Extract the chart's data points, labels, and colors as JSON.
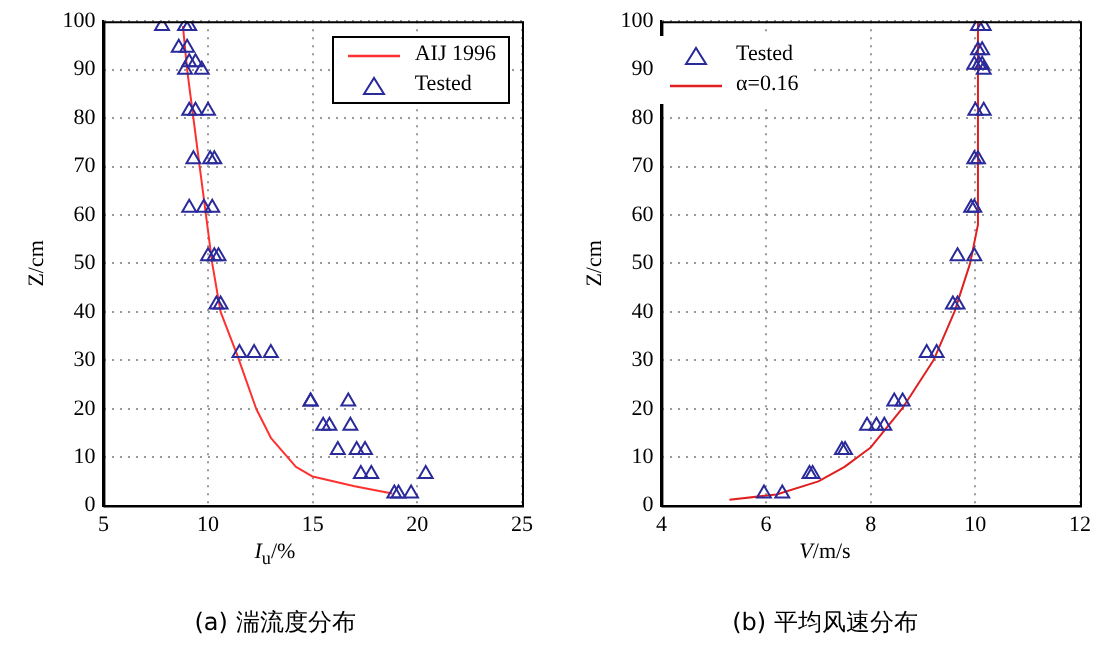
{
  "chart_data": [
    {
      "type": "scatter",
      "xlabel": "I$_{u}$/%",
      "ylabel": "Z/cm",
      "xlim": [
        5,
        25
      ],
      "xticks": [
        5,
        10,
        15,
        20,
        25
      ],
      "ylim": [
        0,
        100
      ],
      "yticks": [
        0,
        10,
        20,
        30,
        40,
        50,
        60,
        70,
        80,
        90,
        100
      ],
      "grid": true,
      "legend": "top right",
      "annotations": [
        "(a)  湍流度分布"
      ],
      "series": [
        {
          "name": "AIJ 1996",
          "type": "line",
          "marker": "none",
          "color": "#ff3030",
          "x": [
            8.8,
            9.0,
            9.3,
            9.6,
            9.9,
            10.2,
            10.6,
            11.4,
            12.3,
            13.0,
            14.2,
            15.0,
            17.0,
            18.8
          ],
          "values": [
            99,
            90,
            80,
            70,
            60,
            50,
            40,
            31,
            20,
            14,
            8,
            6,
            4,
            2.5
          ]
        },
        {
          "name": "Tested",
          "type": "scatter",
          "marker": "triangle",
          "color": "#2a2a9a",
          "x": [
            7.8,
            8.9,
            9.1,
            8.6,
            9.0,
            9.1,
            9.4,
            9.7,
            8.9,
            9.1,
            9.4,
            10.0,
            9.3,
            10.1,
            10.3,
            9.1,
            9.8,
            10.2,
            10.0,
            10.3,
            10.5,
            10.4,
            10.6,
            11.5,
            12.2,
            13.0,
            14.9,
            14.9,
            16.7,
            15.5,
            15.8,
            16.8,
            16.2,
            17.1,
            17.5,
            17.3,
            17.8,
            20.4,
            18.9,
            19.1,
            19.7
          ],
          "values": [
            99,
            99,
            99,
            94.5,
            94.5,
            91.5,
            91.5,
            90,
            90,
            81.5,
            81.5,
            81.5,
            71.5,
            71.5,
            71.5,
            61.5,
            61.5,
            61.5,
            51.5,
            51.5,
            51.5,
            41.5,
            41.5,
            31.5,
            31.5,
            31.5,
            21.5,
            21.5,
            21.5,
            16.5,
            16.5,
            16.5,
            11.5,
            11.5,
            11.5,
            6.5,
            6.5,
            6.5,
            2.5,
            2.5,
            2.5
          ]
        }
      ]
    },
    {
      "type": "scatter",
      "xlabel": "V/m/s",
      "ylabel": "Z/cm",
      "xlim": [
        4,
        12
      ],
      "xticks": [
        4,
        6,
        8,
        10,
        12
      ],
      "ylim": [
        0,
        100
      ],
      "yticks": [
        0,
        10,
        20,
        30,
        40,
        50,
        60,
        70,
        80,
        90,
        100
      ],
      "grid": true,
      "legend": "top left",
      "annotations": [
        "(b)  平均风速分布"
      ],
      "series": [
        {
          "name": "Tested",
          "type": "scatter",
          "marker": "triangle",
          "color": "#2a2a9a",
          "x": [
            10.05,
            10.16,
            10.05,
            10.13,
            9.98,
            10.07,
            10.13,
            10.16,
            10.0,
            10.16,
            9.98,
            10.05,
            9.92,
            9.98,
            9.66,
            9.98,
            9.57,
            9.66,
            9.07,
            9.26,
            8.45,
            8.61,
            7.93,
            8.11,
            8.26,
            7.45,
            7.51,
            6.83,
            6.89,
            5.96,
            6.31
          ],
          "values": [
            99,
            99,
            94,
            94,
            91,
            91,
            91,
            90,
            81.5,
            81.5,
            71.5,
            71.5,
            61.5,
            61.5,
            51.5,
            51.5,
            41.5,
            41.5,
            31.5,
            31.5,
            21.5,
            21.5,
            16.5,
            16.5,
            16.5,
            11.5,
            11.5,
            6.5,
            6.5,
            2.5,
            2.5
          ]
        },
        {
          "name": "α=0.16",
          "type": "line",
          "marker": "none",
          "color": "#e02020",
          "x": [
            5.3,
            6.2,
            7.0,
            7.5,
            8.0,
            8.6,
            9.2,
            9.6,
            9.9,
            10.05,
            10.05
          ],
          "values": [
            1.2,
            2.3,
            5,
            8,
            12,
            20,
            30,
            40,
            50,
            58,
            100
          ]
        }
      ]
    }
  ]
}
